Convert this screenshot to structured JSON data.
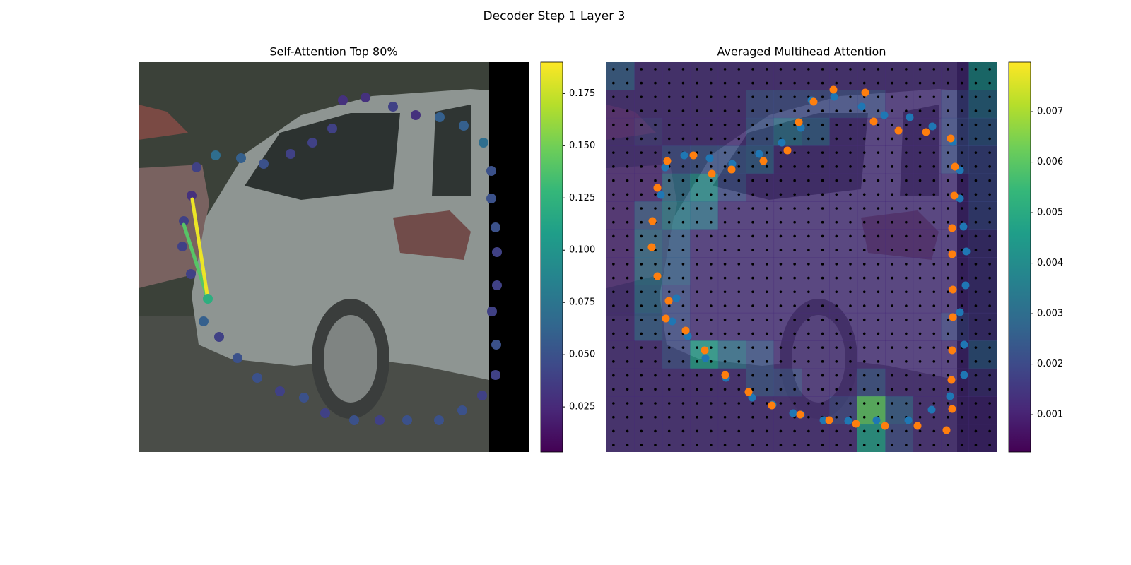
{
  "title": "Decoder Step 1 Layer 3",
  "chart_data": [
    {
      "type": "scatter",
      "title": "Self-Attention Top 80%",
      "xlim": [
        0,
        552
      ],
      "ylim": [
        552,
        0
      ],
      "colormap": "viridis",
      "clim": [
        0.0034,
        0.19
      ],
      "cticks": [
        {
          "value": 0.025,
          "label": "0.025"
        },
        {
          "value": 0.05,
          "label": "0.050"
        },
        {
          "value": 0.075,
          "label": "0.075"
        },
        {
          "value": 0.1,
          "label": "0.100"
        },
        {
          "value": 0.125,
          "label": "0.125"
        },
        {
          "value": 0.15,
          "label": "0.150"
        },
        {
          "value": 0.175,
          "label": "0.175"
        }
      ],
      "x": [
        98,
        92,
        114,
        140,
        168,
        200,
        234,
        264,
        305,
        341,
        380,
        425,
        458,
        486,
        505,
        506,
        500,
        507,
        507,
        505,
        499,
        499,
        488,
        460,
        426,
        392,
        360,
        321,
        289,
        274,
        246,
        215,
        177,
        145,
        109,
        82,
        75,
        64,
        62,
        74
      ],
      "y": [
        217,
        185,
        163,
        133,
        105,
        86,
        77,
        55,
        45,
        45,
        45,
        45,
        59,
        80,
        109,
        152,
        199,
        236,
        283,
        318,
        359,
        398,
        438,
        462,
        474,
        477,
        489,
        502,
        498,
        458,
        438,
        422,
        408,
        416,
        420,
        403,
        363,
        327,
        291,
        252
      ],
      "values": [
        0.12,
        0.06,
        0.04,
        0.05,
        0.05,
        0.04,
        0.05,
        0.04,
        0.05,
        0.04,
        0.05,
        0.05,
        0.05,
        0.04,
        0.04,
        0.05,
        0.04,
        0.04,
        0.04,
        0.05,
        0.05,
        0.05,
        0.07,
        0.06,
        0.06,
        0.03,
        0.04,
        0.03,
        0.03,
        0.04,
        0.04,
        0.04,
        0.05,
        0.06,
        0.07,
        0.04,
        0.03,
        0.04,
        0.04,
        0.04
      ],
      "lines": [
        {
          "x": [
            98,
            64
          ],
          "y": [
            217,
            322
          ],
          "value": 0.14
        },
        {
          "x": [
            98,
            76
          ],
          "y": [
            217,
            358
          ],
          "value": 0.185
        }
      ]
    },
    {
      "type": "heatmap",
      "title": "Averaged Multihead Attention",
      "xlim": [
        0,
        552
      ],
      "ylim": [
        552,
        0
      ],
      "colormap": "viridis",
      "clim": [
        0.00026,
        0.00798
      ],
      "cticks": [
        0.001,
        0.002,
        0.003,
        0.004,
        0.005,
        0.006,
        0.007
      ],
      "z": [
        [
          0.0025,
          0.0012,
          0.0012,
          0.0012,
          0.0012,
          0.0012,
          0.0012,
          0.0012,
          0.0012,
          0.0012,
          0.0012,
          0.0012,
          0.0012,
          0.004
        ],
        [
          0.0012,
          0.0012,
          0.0012,
          0.0012,
          0.0012,
          0.002,
          0.002,
          0.002,
          0.002,
          0.002,
          0.0012,
          0.0012,
          0.0018,
          0.003
        ],
        [
          0.0012,
          0.0015,
          0.0012,
          0.0012,
          0.0012,
          0.0022,
          0.003,
          0.0025,
          0.0012,
          0.0012,
          0.0012,
          0.0012,
          0.002,
          0.0025
        ],
        [
          0.0012,
          0.0012,
          0.002,
          0.0022,
          0.0022,
          0.0025,
          0.0012,
          0.0012,
          0.0012,
          0.0012,
          0.0012,
          0.0012,
          0.002,
          0.002
        ],
        [
          0.0012,
          0.0012,
          0.003,
          0.004,
          0.002,
          0.0012,
          0.0012,
          0.0012,
          0.0012,
          0.0012,
          0.0012,
          0.0012,
          0.0012,
          0.002
        ],
        [
          0.0012,
          0.0025,
          0.0035,
          0.003,
          0.0012,
          0.0012,
          0.0012,
          0.0012,
          0.0012,
          0.0012,
          0.0012,
          0.0012,
          0.0012,
          0.002
        ],
        [
          0.0012,
          0.003,
          0.0025,
          0.0012,
          0.0012,
          0.0012,
          0.0012,
          0.0012,
          0.0012,
          0.0012,
          0.0012,
          0.0012,
          0.0012,
          0.0015
        ],
        [
          0.0012,
          0.003,
          0.0025,
          0.0012,
          0.0012,
          0.0012,
          0.0012,
          0.0012,
          0.0012,
          0.0012,
          0.0012,
          0.0012,
          0.0012,
          0.0015
        ],
        [
          0.0012,
          0.0028,
          0.002,
          0.0012,
          0.0012,
          0.0012,
          0.0012,
          0.0012,
          0.0012,
          0.0012,
          0.0012,
          0.0012,
          0.0012,
          0.0015
        ],
        [
          0.0012,
          0.0025,
          0.002,
          0.0012,
          0.0012,
          0.0012,
          0.0012,
          0.0012,
          0.0012,
          0.0012,
          0.0012,
          0.0012,
          0.0018,
          0.0015
        ],
        [
          0.0012,
          0.0012,
          0.002,
          0.0045,
          0.003,
          0.0022,
          0.0012,
          0.0012,
          0.0012,
          0.0012,
          0.0012,
          0.0012,
          0.0012,
          0.0025
        ],
        [
          0.0012,
          0.0012,
          0.0012,
          0.0012,
          0.0012,
          0.0022,
          0.002,
          0.0012,
          0.0012,
          0.0022,
          0.0012,
          0.0012,
          0.0012,
          0.0015
        ],
        [
          0.0012,
          0.0012,
          0.0012,
          0.0012,
          0.0012,
          0.0012,
          0.0012,
          0.0012,
          0.0018,
          0.006,
          0.0025,
          0.0012,
          0.0012,
          0.0012
        ],
        [
          0.0012,
          0.0012,
          0.0012,
          0.0012,
          0.0012,
          0.0012,
          0.0012,
          0.0012,
          0.0012,
          0.0045,
          0.002,
          0.0012,
          0.0012,
          0.0012
        ]
      ],
      "series": [
        {
          "color": "#1f77b4",
          "x": [
            275,
            307,
            342,
            382,
            427,
            460,
            486,
            506,
            506,
            500,
            508,
            509,
            505,
            500,
            500,
            490,
            461,
            429,
            393,
            361,
            322,
            290,
            275,
            248,
            216,
            178,
            146,
            110,
            83,
            77,
            99,
            93,
            115,
            140,
            169,
            206,
            235,
            264
          ],
          "y": [
            53,
            45,
            44,
            45,
            45,
            60,
            79,
            109,
            152,
            198,
            236,
            284,
            319,
            359,
            399,
            439,
            461,
            474,
            477,
            489,
            503,
            498,
            459,
            438,
            422,
            408,
            416,
            420,
            403,
            364,
            218,
            185,
            164,
            133,
            105,
            77,
            67,
            55
          ]
        },
        {
          "color": "#ff7f0e",
          "x": [
            274,
            315,
            353,
            394,
            440,
            481,
            489,
            488,
            489,
            490,
            490,
            489,
            489,
            492,
            493,
            487,
            452,
            413,
            378,
            366,
            321,
            293,
            272,
            256,
            222,
            177,
            149,
            123,
            86,
            72,
            65,
            64,
            72,
            88,
            84,
            112,
            139,
            168,
            201,
            234
          ],
          "y": [
            53,
            45,
            40,
            37,
            37,
            31,
            61,
            102,
            144,
            191,
            230,
            280,
            317,
            363,
            404,
            444,
            453,
            455,
            468,
            509,
            513,
            496,
            467,
            427,
            412,
            400,
            394,
            420,
            412,
            374,
            327,
            290,
            249,
            214,
            189,
            172,
            144,
            109,
            85,
            66
          ]
        }
      ]
    }
  ]
}
